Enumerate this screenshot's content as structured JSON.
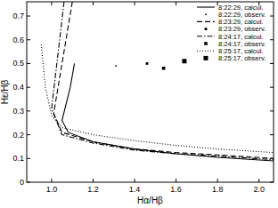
{
  "chart_data": {
    "type": "line",
    "x_label": "Hα/Hβ",
    "y_label": "Hε/Hβ",
    "xlim": [
      0.88,
      2.07
    ],
    "ylim": [
      0,
      0.76
    ],
    "xticks": [
      {
        "value": 1,
        "label": "1.0"
      },
      1.2,
      1.4,
      1.6,
      1.8,
      {
        "value": 2,
        "label": "2.0"
      }
    ],
    "yticks": [
      0,
      0.1,
      0.2,
      0.3,
      0.4,
      0.5,
      0.6,
      0.7
    ],
    "legend": "top-right",
    "series": [
      {
        "name": "8:22:29, calcul.",
        "type": "line",
        "line_style": "solid",
        "color": "#000000",
        "x": [
          1.11,
          1.09,
          1.05,
          1.08,
          1.2,
          1.4,
          1.6,
          1.8,
          2.07
        ],
        "values": [
          0.5,
          0.4,
          0.26,
          0.21,
          0.17,
          0.14,
          0.12,
          0.105,
          0.09
        ]
      },
      {
        "name": "8:22:29, observ.",
        "type": "scatter",
        "marker": "point",
        "color": "#000000",
        "x": [
          1.31
        ],
        "values": [
          0.49
        ]
      },
      {
        "name": "8:23:29, calcul.",
        "type": "line",
        "line_style": "dashed",
        "color": "#000000",
        "x": [
          1.1,
          1.01,
          1.05,
          1.2,
          1.4,
          1.6,
          1.8,
          2.07
        ],
        "values": [
          0.76,
          0.29,
          0.21,
          0.17,
          0.14,
          0.125,
          0.115,
          0.1
        ]
      },
      {
        "name": "8:23:29, observ.",
        "type": "scatter",
        "marker": "small-square",
        "color": "#000000",
        "x": [
          1.46
        ],
        "values": [
          0.5
        ]
      },
      {
        "name": "8:24:17, calcul.",
        "type": "line",
        "line_style": "dashdot",
        "color": "#000000",
        "x": [
          1.06,
          1.0,
          1.05,
          1.2,
          1.4,
          1.6,
          1.8,
          2.07
        ],
        "values": [
          0.76,
          0.31,
          0.2,
          0.165,
          0.135,
          0.12,
          0.11,
          0.095
        ]
      },
      {
        "name": "8:24:17, observ.",
        "type": "scatter",
        "marker": "square",
        "color": "#000000",
        "x": [
          1.54
        ],
        "values": [
          0.48
        ]
      },
      {
        "name": "8:25:17, calcul.",
        "type": "line",
        "line_style": "dotted",
        "color": "#000000",
        "x": [
          0.95,
          0.97,
          1.0,
          1.05,
          1.2,
          1.4,
          1.6,
          1.8,
          2.07
        ],
        "values": [
          0.58,
          0.4,
          0.28,
          0.23,
          0.2,
          0.175,
          0.155,
          0.14,
          0.125
        ]
      },
      {
        "name": "8:25:17, observ.",
        "type": "scatter",
        "marker": "large-square",
        "color": "#000000",
        "x": [
          1.64
        ],
        "values": [
          0.51
        ]
      }
    ]
  }
}
